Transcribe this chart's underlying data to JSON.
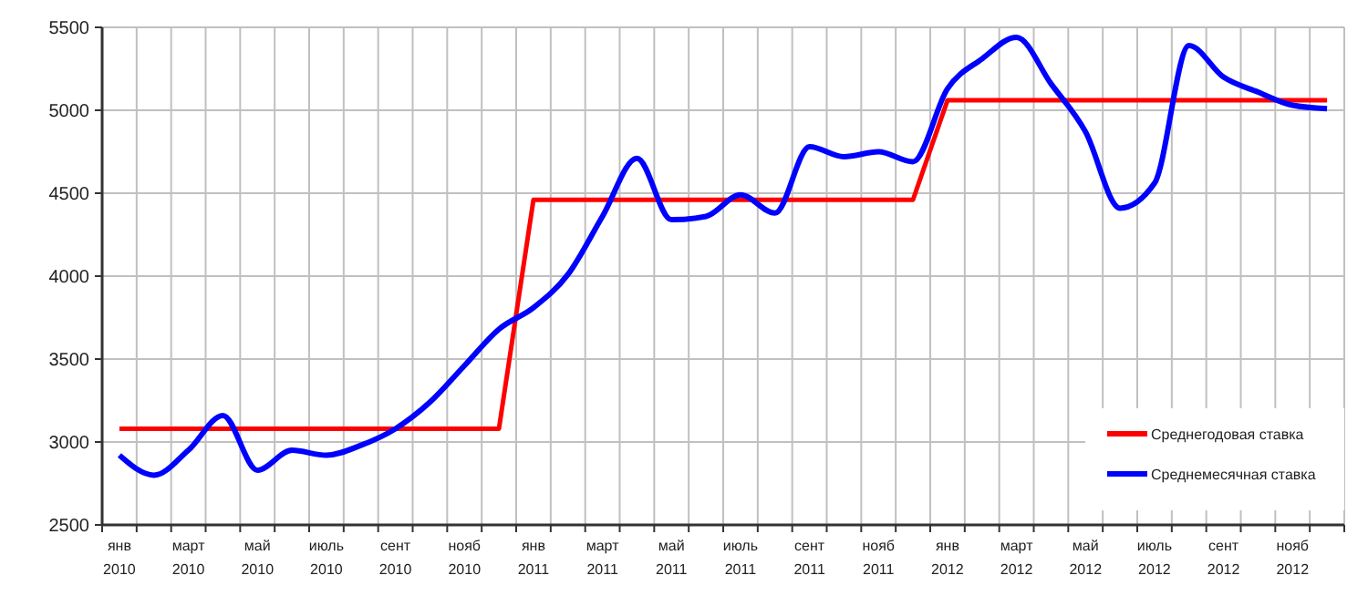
{
  "chart_data": {
    "type": "line",
    "categories": [
      "янв 2010",
      null,
      "март 2010",
      null,
      "май 2010",
      null,
      "июль 2010",
      null,
      "сент 2010",
      null,
      "нояб 2010",
      null,
      "янв 2011",
      null,
      "март 2011",
      null,
      "май 2011",
      null,
      "июль 2011",
      null,
      "сент 2011",
      null,
      "нояб 2011",
      null,
      "янв 2012",
      null,
      "март 2012",
      null,
      "май 2012",
      null,
      "июль 2012",
      null,
      "сент 2012",
      null,
      "нояб 2012",
      null
    ],
    "series": [
      {
        "name": "Среднегодовая ставка",
        "color": "#ff0000",
        "values": [
          3080,
          3080,
          3080,
          3080,
          3080,
          3080,
          3080,
          3080,
          3080,
          3080,
          3080,
          3080,
          4460,
          4460,
          4460,
          4460,
          4460,
          4460,
          4460,
          4460,
          4460,
          4460,
          4460,
          4460,
          5060,
          5060,
          5060,
          5060,
          5060,
          5060,
          5060,
          5060,
          5060,
          5060,
          5060,
          5060
        ]
      },
      {
        "name": "Среднемесячная ставка",
        "color": "#0000ff",
        "values": [
          2920,
          2800,
          2950,
          3160,
          2830,
          2950,
          2920,
          2980,
          3080,
          3240,
          3460,
          3680,
          3810,
          4010,
          4360,
          4710,
          4340,
          4360,
          4490,
          4380,
          4780,
          4720,
          4750,
          4690,
          5130,
          5310,
          5440,
          5160,
          4870,
          4410,
          4560,
          5390,
          5200,
          5110,
          5030,
          5010
        ]
      }
    ],
    "ylim": [
      2500,
      5500
    ],
    "yticks": [
      2500,
      3000,
      3500,
      4000,
      4500,
      5000,
      5500
    ],
    "grid": true,
    "legend": "bottom right",
    "marker": "none",
    "line_style": "solid"
  }
}
